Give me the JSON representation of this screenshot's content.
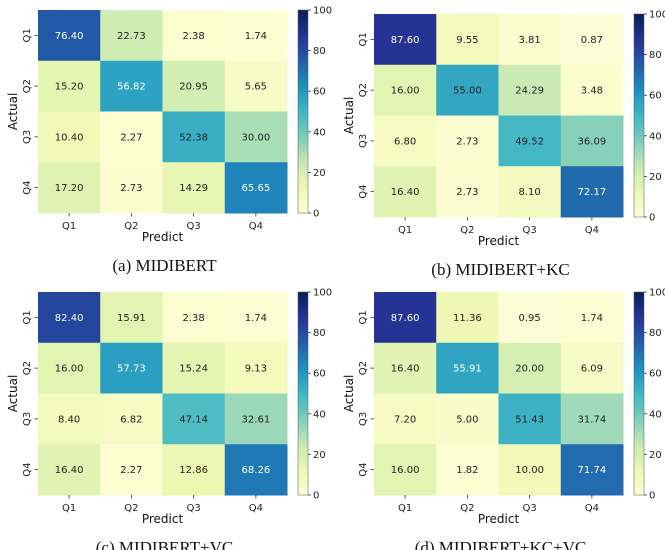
{
  "colorscale": {
    "stops": [
      "#ffffd9",
      "#edf8b1",
      "#c7e9b4",
      "#7fcdbb",
      "#41b6c4",
      "#1d91c0",
      "#225ea8",
      "#253494",
      "#081d58"
    ],
    "dark_text": "#222222",
    "light_text": "#ffffff"
  },
  "chart_data": [
    {
      "type": "heatmap",
      "caption": "(a) MIDIBERT",
      "xlabel": "Predict",
      "ylabel": "Actual",
      "x_categories": [
        "Q1",
        "Q2",
        "Q3",
        "Q4"
      ],
      "y_categories": [
        "Q1",
        "Q2",
        "Q3",
        "Q4"
      ],
      "values": [
        [
          76.4,
          22.73,
          2.38,
          1.74
        ],
        [
          15.2,
          56.82,
          20.95,
          5.65
        ],
        [
          10.4,
          2.27,
          52.38,
          30.0
        ],
        [
          17.2,
          2.73,
          14.29,
          65.65
        ]
      ],
      "value_labels": [
        [
          "76.40",
          "22.73",
          "2.38",
          "1.74"
        ],
        [
          "15.20",
          "56.82",
          "20.95",
          "5.65"
        ],
        [
          "10.40",
          "2.27",
          "52.38",
          "30.00"
        ],
        [
          "17.20",
          "2.73",
          "14.29",
          "65.65"
        ]
      ],
      "colorbar": {
        "range": [
          0,
          100
        ],
        "ticks": [
          "0",
          "20",
          "40",
          "60",
          "80",
          "100"
        ]
      }
    },
    {
      "type": "heatmap",
      "caption": "(b) MIDIBERT+KC",
      "xlabel": "Predict",
      "ylabel": "Actual",
      "x_categories": [
        "Q1",
        "Q2",
        "Q3",
        "Q4"
      ],
      "y_categories": [
        "Q1",
        "Q2",
        "Q3",
        "Q4"
      ],
      "values": [
        [
          87.6,
          9.55,
          3.81,
          0.87
        ],
        [
          16.0,
          55.0,
          24.29,
          3.48
        ],
        [
          6.8,
          2.73,
          49.52,
          36.09
        ],
        [
          16.4,
          2.73,
          8.1,
          72.17
        ]
      ],
      "value_labels": [
        [
          "87.60",
          "9.55",
          "3.81",
          "0.87"
        ],
        [
          "16.00",
          "55.00",
          "24.29",
          "3.48"
        ],
        [
          "6.80",
          "2.73",
          "49.52",
          "36.09"
        ],
        [
          "16.40",
          "2.73",
          "8.10",
          "72.17"
        ]
      ],
      "colorbar": {
        "range": [
          0,
          100
        ],
        "ticks": [
          "0",
          "20",
          "40",
          "60",
          "80",
          "100"
        ]
      }
    },
    {
      "type": "heatmap",
      "caption": "(c) MIDIBERT+VC",
      "xlabel": "Predict",
      "ylabel": "Actual",
      "x_categories": [
        "Q1",
        "Q2",
        "Q3",
        "Q4"
      ],
      "y_categories": [
        "Q1",
        "Q2",
        "Q3",
        "Q4"
      ],
      "values": [
        [
          82.4,
          15.91,
          2.38,
          1.74
        ],
        [
          16.0,
          57.73,
          15.24,
          9.13
        ],
        [
          8.4,
          6.82,
          47.14,
          32.61
        ],
        [
          16.4,
          2.27,
          12.86,
          68.26
        ]
      ],
      "value_labels": [
        [
          "82.40",
          "15.91",
          "2.38",
          "1.74"
        ],
        [
          "16.00",
          "57.73",
          "15.24",
          "9.13"
        ],
        [
          "8.40",
          "6.82",
          "47.14",
          "32.61"
        ],
        [
          "16.40",
          "2.27",
          "12.86",
          "68.26"
        ]
      ],
      "colorbar": {
        "range": [
          0,
          100
        ],
        "ticks": [
          "0",
          "20",
          "40",
          "60",
          "80",
          "100"
        ]
      }
    },
    {
      "type": "heatmap",
      "caption": "(d) MIDIBERT+KC+VC",
      "xlabel": "Predict",
      "ylabel": "Actual",
      "x_categories": [
        "Q1",
        "Q2",
        "Q3",
        "Q4"
      ],
      "y_categories": [
        "Q1",
        "Q2",
        "Q3",
        "Q4"
      ],
      "values": [
        [
          87.6,
          11.36,
          0.95,
          1.74
        ],
        [
          16.4,
          55.91,
          20.0,
          6.09
        ],
        [
          7.2,
          5.0,
          51.43,
          31.74
        ],
        [
          16.0,
          1.82,
          10.0,
          71.74
        ]
      ],
      "value_labels": [
        [
          "87.60",
          "11.36",
          "0.95",
          "1.74"
        ],
        [
          "16.40",
          "55.91",
          "20.00",
          "6.09"
        ],
        [
          "7.20",
          "5.00",
          "51.43",
          "31.74"
        ],
        [
          "16.00",
          "1.82",
          "10.00",
          "71.74"
        ]
      ],
      "colorbar": {
        "range": [
          0,
          100
        ],
        "ticks": [
          "0",
          "20",
          "40",
          "60",
          "80",
          "100"
        ]
      }
    }
  ]
}
